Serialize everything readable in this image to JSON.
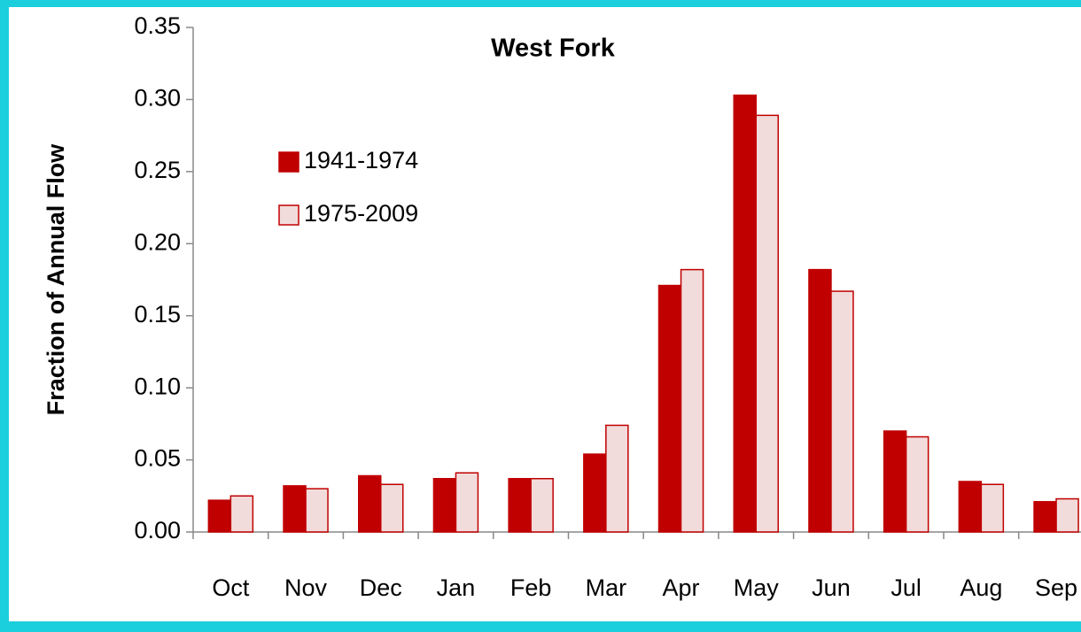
{
  "chart_data": {
    "type": "bar",
    "title": "West Fork",
    "y_label": "Fraction of Annual Flow",
    "categories": [
      "Oct",
      "Nov",
      "Dec",
      "Jan",
      "Feb",
      "Mar",
      "Apr",
      "May",
      "Jun",
      "Jul",
      "Aug",
      "Sep"
    ],
    "series": [
      {
        "name": "1941-1974",
        "color": "#c00000",
        "values": [
          0.022,
          0.032,
          0.039,
          0.037,
          0.037,
          0.054,
          0.171,
          0.303,
          0.182,
          0.07,
          0.035,
          0.021
        ]
      },
      {
        "name": "1975-2009",
        "color": "#f2dcdb",
        "values": [
          0.025,
          0.03,
          0.033,
          0.041,
          0.037,
          0.074,
          0.182,
          0.289,
          0.167,
          0.066,
          0.033,
          0.023
        ]
      }
    ],
    "ylim": [
      0,
      0.35
    ],
    "yticks": [
      {
        "value": 0,
        "label": "0.00"
      },
      0.05,
      {
        "value": 0.1,
        "label": "0.10"
      },
      0.15,
      {
        "value": 0.2,
        "label": "0.20"
      },
      0.25,
      {
        "value": 0.3,
        "label": "0.30"
      },
      0.35
    ],
    "legend": "upper left",
    "grid": false
  }
}
